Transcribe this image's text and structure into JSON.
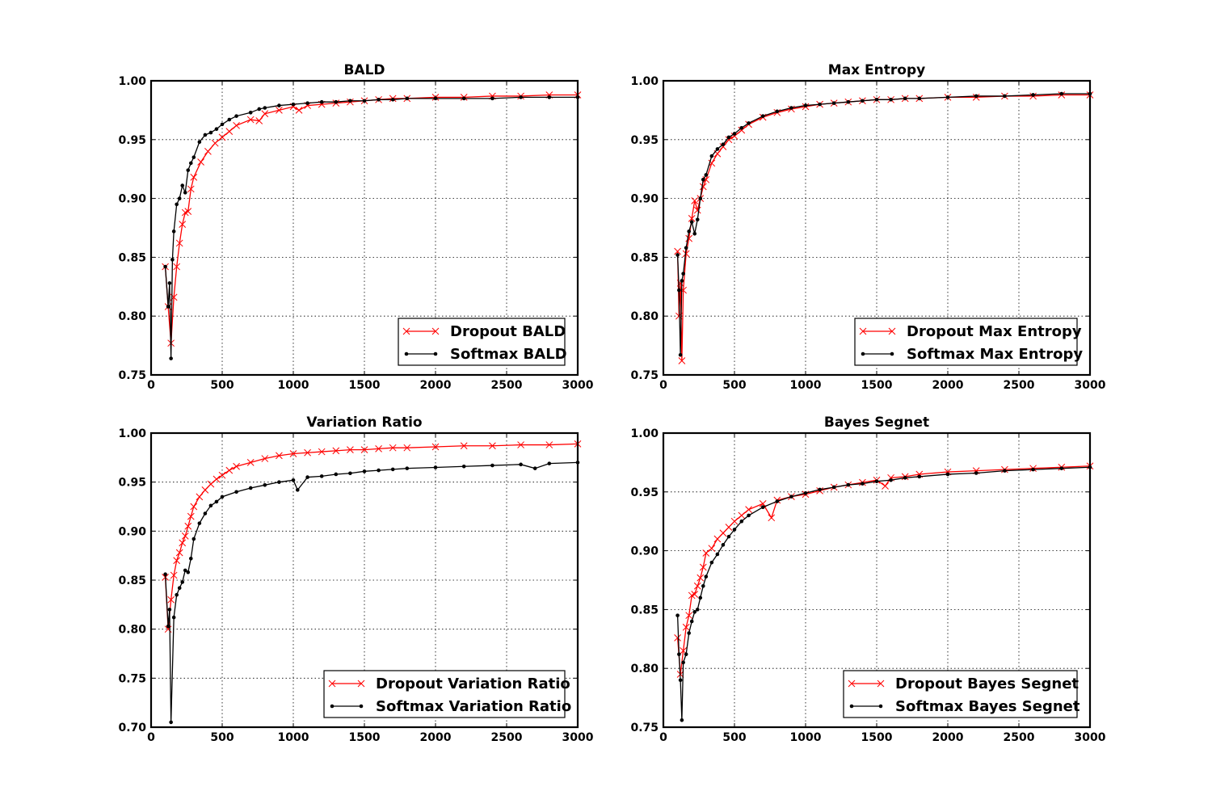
{
  "chart_data": [
    {
      "type": "line",
      "title": "BALD",
      "xlabel": "",
      "ylabel": "",
      "xlim": [
        0,
        3000
      ],
      "ylim": [
        0.75,
        1.0
      ],
      "xticks": [
        "0",
        "500",
        "1000",
        "1500",
        "2000",
        "2500",
        "3000"
      ],
      "yticks": [
        "0.75",
        "0.80",
        "0.85",
        "0.90",
        "0.95",
        "1.00"
      ],
      "grid": true,
      "legend_position": "lower-right",
      "series": [
        {
          "name": "Dropout BALD",
          "color": "#ff0000",
          "marker": "x",
          "x": [
            100,
            120,
            140,
            160,
            180,
            200,
            220,
            240,
            260,
            280,
            300,
            350,
            400,
            450,
            500,
            550,
            600,
            700,
            760,
            800,
            900,
            1000,
            1040,
            1100,
            1200,
            1300,
            1400,
            1500,
            1600,
            1700,
            1800,
            2000,
            2200,
            2400,
            2600,
            2800,
            3000
          ],
          "y": [
            0.842,
            0.808,
            0.777,
            0.816,
            0.842,
            0.862,
            0.878,
            0.888,
            0.889,
            0.908,
            0.918,
            0.931,
            0.94,
            0.947,
            0.952,
            0.957,
            0.962,
            0.967,
            0.966,
            0.972,
            0.975,
            0.978,
            0.975,
            0.979,
            0.98,
            0.981,
            0.982,
            0.983,
            0.984,
            0.985,
            0.985,
            0.986,
            0.986,
            0.987,
            0.987,
            0.988,
            0.988
          ]
        },
        {
          "name": "Softmax BALD",
          "color": "#000000",
          "marker": "o",
          "x": [
            100,
            120,
            130,
            140,
            150,
            160,
            180,
            200,
            220,
            240,
            260,
            280,
            300,
            340,
            380,
            420,
            460,
            500,
            550,
            600,
            700,
            760,
            800,
            900,
            1000,
            1100,
            1200,
            1300,
            1400,
            1500,
            1600,
            1700,
            1800,
            2000,
            2200,
            2400,
            2600,
            2800,
            3000
          ],
          "y": [
            0.842,
            0.808,
            0.828,
            0.764,
            0.848,
            0.872,
            0.895,
            0.9,
            0.911,
            0.905,
            0.924,
            0.93,
            0.935,
            0.948,
            0.954,
            0.956,
            0.959,
            0.963,
            0.967,
            0.97,
            0.973,
            0.976,
            0.977,
            0.979,
            0.98,
            0.981,
            0.982,
            0.982,
            0.983,
            0.983,
            0.984,
            0.984,
            0.985,
            0.985,
            0.985,
            0.985,
            0.986,
            0.986,
            0.986
          ]
        }
      ]
    },
    {
      "type": "line",
      "title": "Max Entropy",
      "xlabel": "",
      "ylabel": "",
      "xlim": [
        0,
        3000
      ],
      "ylim": [
        0.75,
        1.0
      ],
      "xticks": [
        "0",
        "500",
        "1000",
        "1500",
        "2000",
        "2500",
        "3000"
      ],
      "yticks": [
        "0.75",
        "0.80",
        "0.85",
        "0.90",
        "0.95",
        "1.00"
      ],
      "grid": true,
      "legend_position": "lower-right",
      "series": [
        {
          "name": "Dropout Max Entropy",
          "color": "#ff0000",
          "marker": "x",
          "x": [
            100,
            110,
            120,
            130,
            140,
            160,
            180,
            200,
            220,
            240,
            260,
            280,
            300,
            340,
            380,
            420,
            460,
            500,
            550,
            600,
            700,
            800,
            900,
            1000,
            1100,
            1200,
            1300,
            1400,
            1500,
            1600,
            1700,
            1800,
            2000,
            2200,
            2400,
            2600,
            2800,
            3000
          ],
          "y": [
            0.855,
            0.8,
            0.828,
            0.762,
            0.822,
            0.853,
            0.866,
            0.883,
            0.898,
            0.89,
            0.9,
            0.91,
            0.916,
            0.93,
            0.938,
            0.944,
            0.95,
            0.953,
            0.958,
            0.963,
            0.969,
            0.973,
            0.976,
            0.978,
            0.98,
            0.981,
            0.982,
            0.983,
            0.984,
            0.984,
            0.985,
            0.985,
            0.986,
            0.986,
            0.987,
            0.987,
            0.988,
            0.988
          ]
        },
        {
          "name": "Softmax Max Entropy",
          "color": "#000000",
          "marker": "o",
          "x": [
            100,
            110,
            120,
            130,
            140,
            160,
            180,
            200,
            220,
            240,
            260,
            280,
            300,
            340,
            380,
            420,
            460,
            500,
            550,
            600,
            700,
            800,
            900,
            1000,
            1100,
            1200,
            1300,
            1400,
            1500,
            1600,
            1700,
            1800,
            2000,
            2200,
            2400,
            2600,
            2800,
            3000
          ],
          "y": [
            0.852,
            0.822,
            0.767,
            0.83,
            0.836,
            0.858,
            0.872,
            0.88,
            0.87,
            0.882,
            0.9,
            0.916,
            0.92,
            0.936,
            0.942,
            0.946,
            0.952,
            0.955,
            0.96,
            0.964,
            0.97,
            0.974,
            0.977,
            0.979,
            0.98,
            0.981,
            0.982,
            0.983,
            0.984,
            0.984,
            0.985,
            0.985,
            0.986,
            0.987,
            0.987,
            0.988,
            0.989,
            0.989
          ]
        }
      ]
    },
    {
      "type": "line",
      "title": "Variation Ratio",
      "xlabel": "",
      "ylabel": "",
      "xlim": [
        0,
        3000
      ],
      "ylim": [
        0.7,
        1.0
      ],
      "xticks": [
        "0",
        "500",
        "1000",
        "1500",
        "2000",
        "2500",
        "3000"
      ],
      "yticks": [
        "0.70",
        "0.75",
        "0.80",
        "0.85",
        "0.90",
        "0.95",
        "1.00"
      ],
      "grid": true,
      "legend_position": "lower-right",
      "series": [
        {
          "name": "Dropout Variation Ratio",
          "color": "#ff0000",
          "marker": "x",
          "x": [
            100,
            120,
            140,
            160,
            180,
            200,
            220,
            240,
            260,
            280,
            300,
            340,
            380,
            420,
            460,
            500,
            550,
            600,
            700,
            800,
            900,
            1000,
            1100,
            1200,
            1300,
            1400,
            1500,
            1600,
            1700,
            1800,
            2000,
            2200,
            2400,
            2600,
            2800,
            3000
          ],
          "y": [
            0.853,
            0.8,
            0.83,
            0.855,
            0.87,
            0.878,
            0.888,
            0.895,
            0.905,
            0.915,
            0.925,
            0.935,
            0.942,
            0.948,
            0.953,
            0.957,
            0.962,
            0.966,
            0.97,
            0.974,
            0.977,
            0.979,
            0.98,
            0.981,
            0.982,
            0.983,
            0.983,
            0.984,
            0.985,
            0.985,
            0.986,
            0.987,
            0.987,
            0.988,
            0.988,
            0.989
          ]
        },
        {
          "name": "Softmax Variation Ratio",
          "color": "#000000",
          "marker": "o",
          "x": [
            100,
            120,
            130,
            140,
            160,
            180,
            200,
            220,
            240,
            260,
            280,
            300,
            340,
            380,
            420,
            460,
            500,
            600,
            700,
            800,
            900,
            1000,
            1030,
            1100,
            1200,
            1300,
            1400,
            1500,
            1600,
            1700,
            1800,
            2000,
            2200,
            2400,
            2600,
            2700,
            2800,
            3000
          ],
          "y": [
            0.856,
            0.803,
            0.82,
            0.705,
            0.812,
            0.835,
            0.842,
            0.848,
            0.86,
            0.858,
            0.872,
            0.892,
            0.908,
            0.918,
            0.926,
            0.93,
            0.935,
            0.94,
            0.944,
            0.947,
            0.95,
            0.952,
            0.942,
            0.955,
            0.956,
            0.958,
            0.959,
            0.961,
            0.962,
            0.963,
            0.964,
            0.965,
            0.966,
            0.967,
            0.968,
            0.964,
            0.969,
            0.97
          ]
        }
      ]
    },
    {
      "type": "line",
      "title": "Bayes Segnet",
      "xlabel": "",
      "ylabel": "",
      "xlim": [
        0,
        3000
      ],
      "ylim": [
        0.75,
        1.0
      ],
      "xticks": [
        "0",
        "500",
        "1000",
        "1500",
        "2000",
        "2500",
        "3000"
      ],
      "yticks": [
        "0.75",
        "0.80",
        "0.85",
        "0.90",
        "0.95",
        "1.00"
      ],
      "grid": true,
      "legend_position": "lower-right",
      "series": [
        {
          "name": "Dropout Bayes Segnet",
          "color": "#ff0000",
          "marker": "x",
          "x": [
            100,
            120,
            140,
            160,
            180,
            200,
            220,
            240,
            260,
            280,
            300,
            340,
            380,
            420,
            460,
            500,
            550,
            600,
            700,
            760,
            800,
            900,
            1000,
            1100,
            1200,
            1300,
            1400,
            1500,
            1560,
            1600,
            1700,
            1800,
            2000,
            2200,
            2400,
            2600,
            2800,
            3000
          ],
          "y": [
            0.826,
            0.795,
            0.815,
            0.835,
            0.845,
            0.862,
            0.863,
            0.87,
            0.877,
            0.886,
            0.898,
            0.902,
            0.91,
            0.915,
            0.92,
            0.925,
            0.93,
            0.935,
            0.94,
            0.928,
            0.943,
            0.946,
            0.948,
            0.951,
            0.954,
            0.956,
            0.958,
            0.96,
            0.955,
            0.962,
            0.963,
            0.965,
            0.967,
            0.968,
            0.969,
            0.97,
            0.971,
            0.972
          ]
        },
        {
          "name": "Softmax Bayes Segnet",
          "color": "#000000",
          "marker": "o",
          "x": [
            100,
            110,
            120,
            130,
            140,
            160,
            180,
            200,
            220,
            240,
            260,
            280,
            300,
            340,
            380,
            420,
            460,
            500,
            550,
            600,
            700,
            800,
            900,
            1000,
            1100,
            1200,
            1300,
            1400,
            1500,
            1600,
            1700,
            1800,
            2000,
            2200,
            2400,
            2600,
            2800,
            3000
          ],
          "y": [
            0.845,
            0.812,
            0.79,
            0.756,
            0.805,
            0.812,
            0.83,
            0.84,
            0.848,
            0.85,
            0.86,
            0.87,
            0.878,
            0.89,
            0.897,
            0.905,
            0.912,
            0.918,
            0.925,
            0.93,
            0.937,
            0.942,
            0.946,
            0.949,
            0.952,
            0.954,
            0.956,
            0.957,
            0.959,
            0.96,
            0.962,
            0.963,
            0.965,
            0.966,
            0.968,
            0.969,
            0.97,
            0.971
          ]
        }
      ]
    }
  ]
}
